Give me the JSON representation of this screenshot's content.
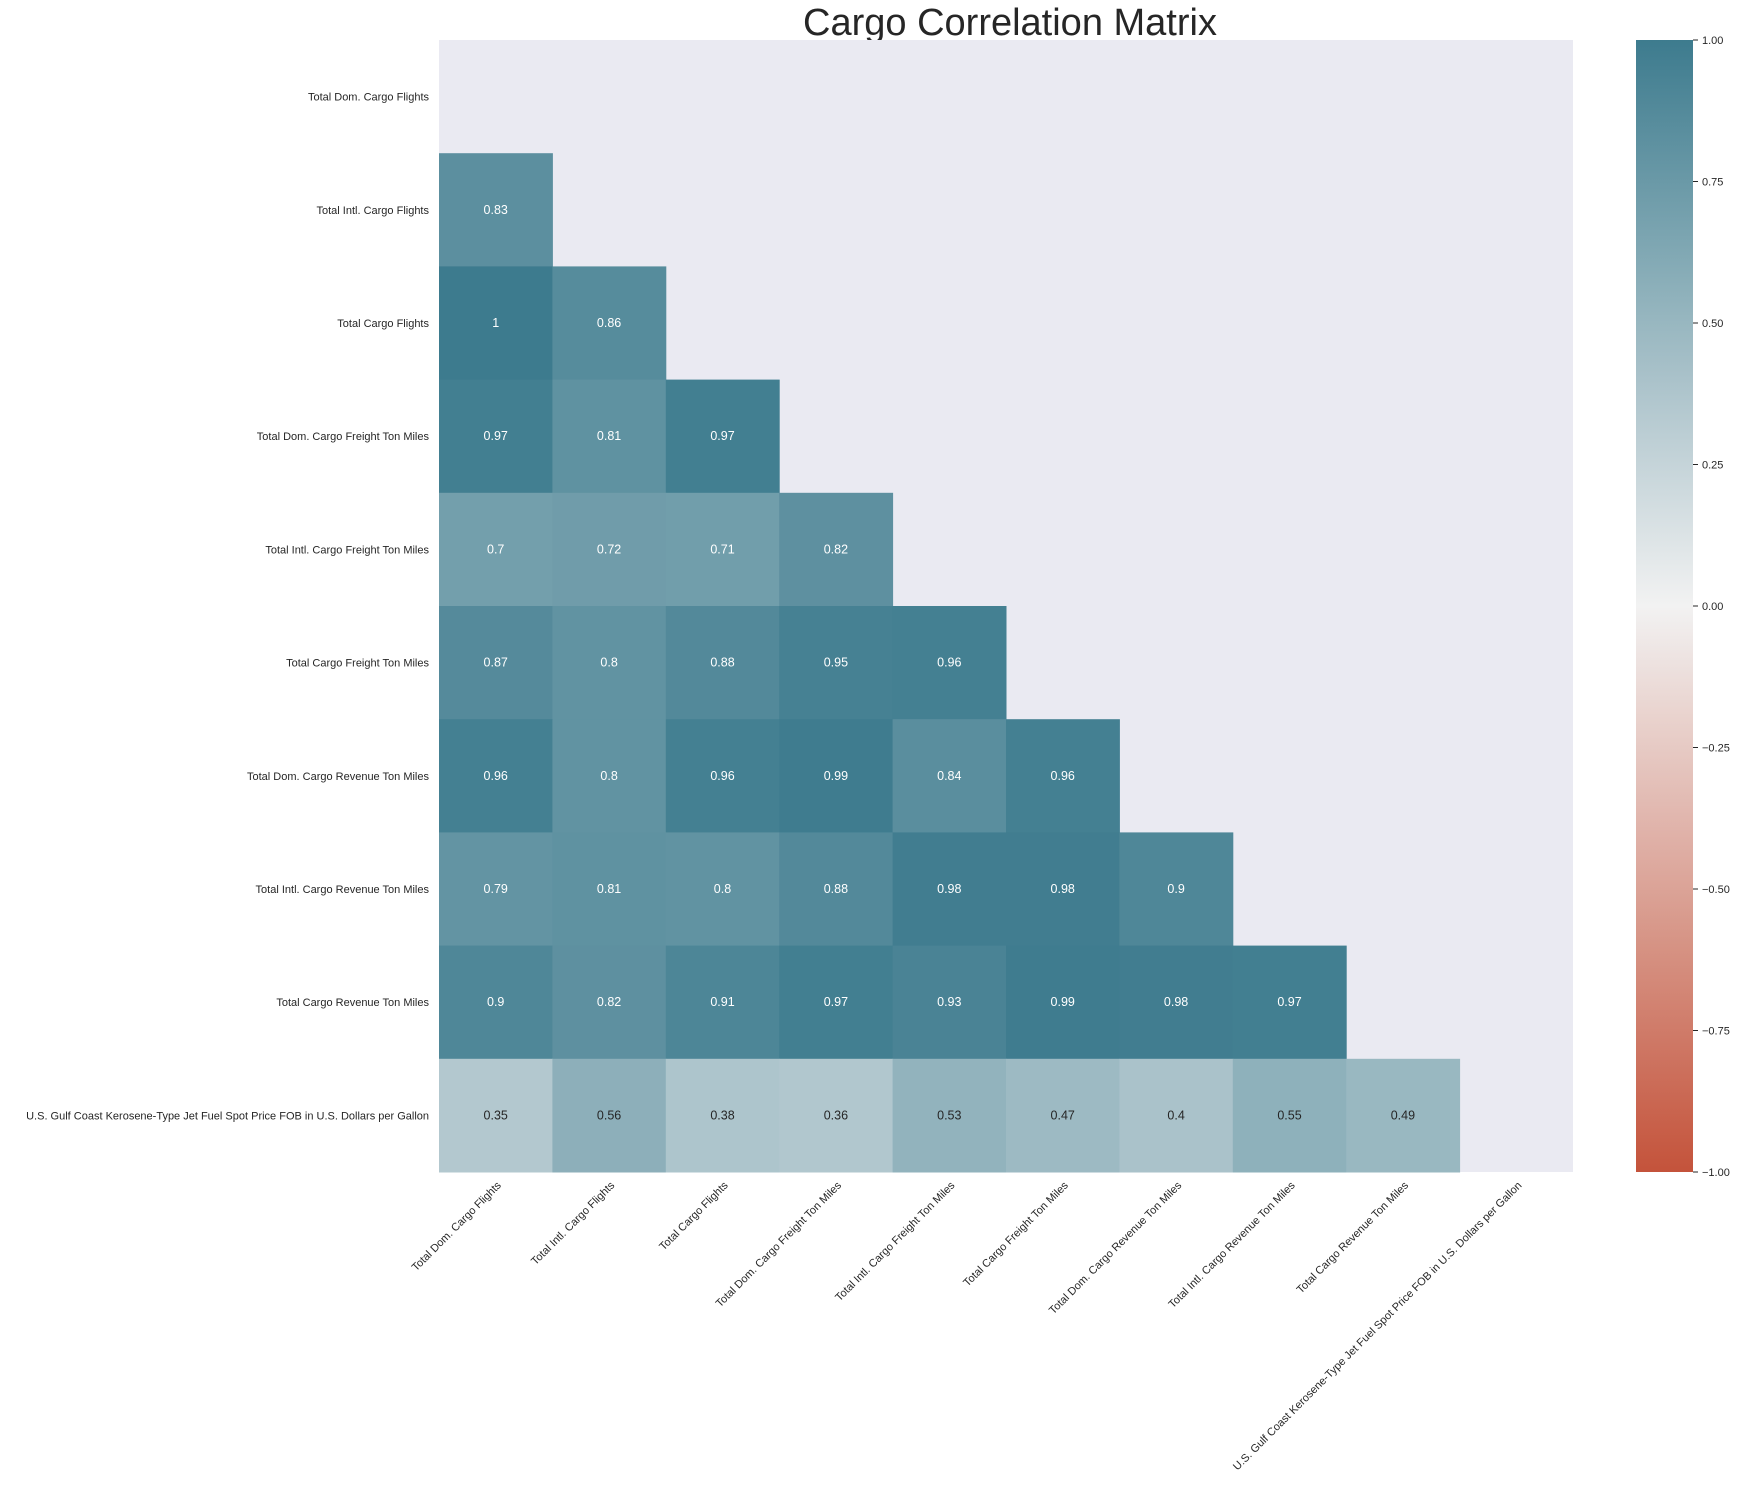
{
  "chart_data": {
    "type": "heatmap",
    "title": "Cargo Correlation Matrix",
    "variables": [
      "Total Dom. Cargo Flights",
      "Total Intl. Cargo Flights",
      "Total Cargo Flights",
      "Total Dom. Cargo Freight Ton Miles",
      "Total Intl. Cargo Freight Ton Miles",
      "Total Cargo Freight Ton Miles",
      "Total Dom. Cargo Revenue Ton Miles",
      "Total Intl. Cargo Revenue Ton Miles",
      "Total Cargo Revenue Ton Miles",
      "U.S. Gulf Coast Kerosene-Type Jet Fuel Spot Price FOB in U.S. Dollars per Gallon"
    ],
    "mask": "upper-triangle-including-diagonal",
    "values": [
      [],
      [
        0.83
      ],
      [
        1,
        0.86
      ],
      [
        0.97,
        0.81,
        0.97
      ],
      [
        0.7,
        0.72,
        0.71,
        0.82
      ],
      [
        0.87,
        0.8,
        0.88,
        0.95,
        0.96
      ],
      [
        0.96,
        0.8,
        0.96,
        0.99,
        0.84,
        0.96
      ],
      [
        0.79,
        0.81,
        0.8,
        0.88,
        0.98,
        0.98,
        0.9
      ],
      [
        0.9,
        0.82,
        0.91,
        0.97,
        0.93,
        0.99,
        0.98,
        0.97
      ],
      [
        0.35,
        0.56,
        0.38,
        0.36,
        0.53,
        0.47,
        0.4,
        0.55,
        0.49
      ]
    ],
    "vmin": -1,
    "vmax": 1,
    "colormap": {
      "low": "#c4533b",
      "mid": "#f2f2f2",
      "high": "#3d7b8e"
    },
    "background": "#eaeaf2",
    "colorbar_ticks": [
      "1.00",
      "0.75",
      "0.50",
      "0.25",
      "0.00",
      "−0.25",
      "−0.50",
      "−0.75",
      "−1.00"
    ],
    "colorbar_tick_values": [
      1,
      0.75,
      0.5,
      0.25,
      0,
      -0.25,
      -0.5,
      -0.75,
      -1
    ],
    "grid": false,
    "legend": "colorbar-right"
  }
}
